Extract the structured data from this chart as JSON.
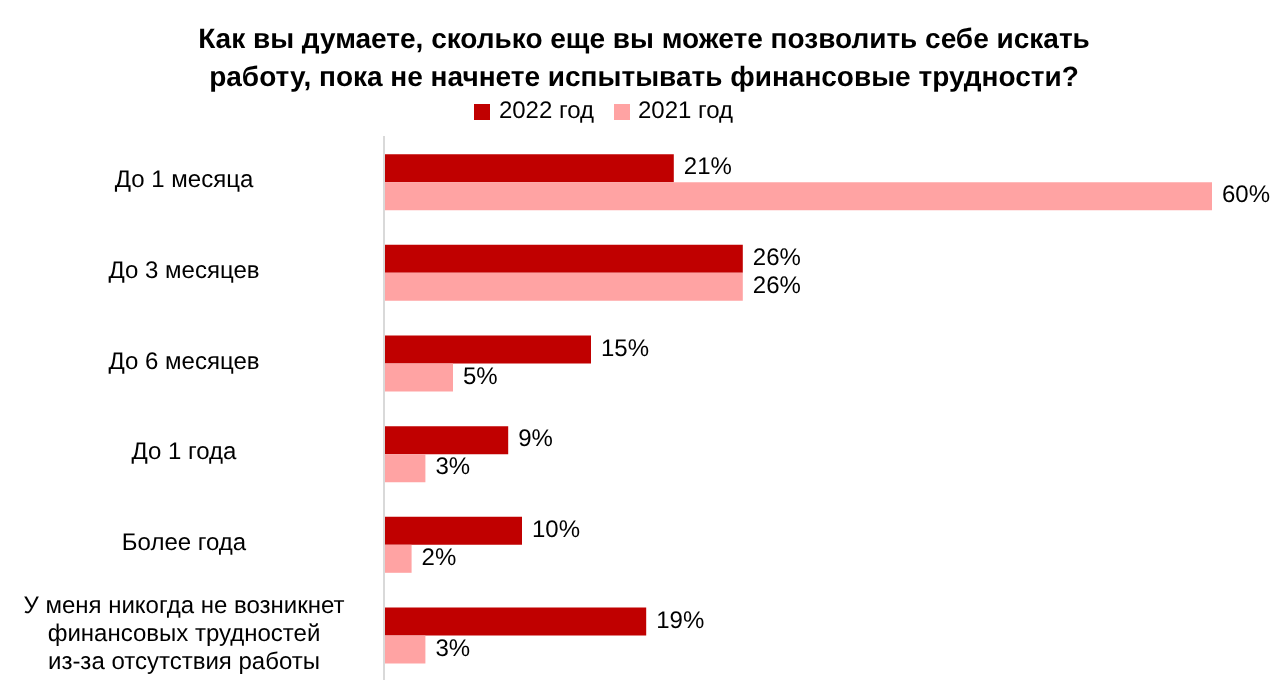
{
  "chart_data": {
    "type": "bar",
    "orientation": "horizontal",
    "title": "Как вы думаете, сколько еще вы можете позволить себе искать работу, пока не начнете испытывать финансовые трудности?",
    "categories": [
      "До 1 месяца",
      "До 3 месяцев",
      "До 6 месяцев",
      "До 1 года",
      "Более года",
      "У меня никогда не возникнет финансовых трудностей из-за отсутствия работы"
    ],
    "series": [
      {
        "name": "2022 год",
        "color": "#c00000",
        "values": [
          21,
          26,
          15,
          9,
          10,
          19
        ],
        "value_labels": [
          "21%",
          "26%",
          "15%",
          "9%",
          "10%",
          "19%"
        ]
      },
      {
        "name": "2021 год",
        "color": "#ffa3a3",
        "values": [
          60,
          26,
          5,
          3,
          2,
          3
        ],
        "value_labels": [
          "60%",
          "26%",
          "5%",
          "3%",
          "2%",
          "3%"
        ]
      }
    ],
    "legend": "top",
    "grid": false,
    "tick_labels": "y"
  }
}
